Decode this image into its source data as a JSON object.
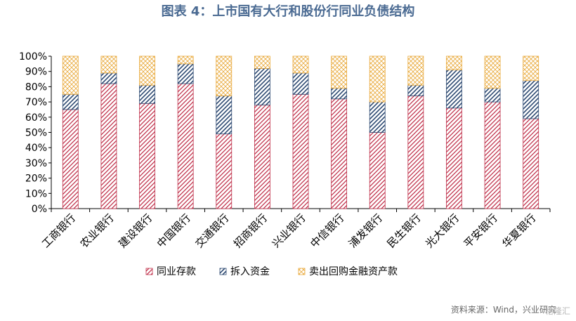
{
  "chart_data": {
    "type": "bar",
    "stacked": true,
    "title": "图表 4：上市国有大行和股份行同业负债结构",
    "categories": [
      "工商银行",
      "农业银行",
      "建设银行",
      "中国银行",
      "交通银行",
      "招商银行",
      "兴业银行",
      "中信银行",
      "浦发银行",
      "民生银行",
      "光大银行",
      "平安银行",
      "华夏银行"
    ],
    "series": [
      {
        "name": "同业存款",
        "color": "#c0304a",
        "pattern": "diag-red",
        "values": [
          65,
          82,
          69,
          82,
          49,
          68,
          75,
          72,
          50,
          74,
          66,
          70,
          59
        ]
      },
      {
        "name": "拆入资金",
        "color": "#2e4a72",
        "pattern": "diag-blue",
        "values": [
          10,
          7,
          12,
          13,
          25,
          24,
          14,
          7,
          20,
          7,
          25,
          9,
          25
        ]
      },
      {
        "name": "卖出回购金融资产款",
        "color": "#e9a93a",
        "pattern": "cross-orange",
        "values": [
          25,
          11,
          19,
          5,
          26,
          8,
          11,
          21,
          30,
          19,
          9,
          21,
          16
        ]
      }
    ],
    "ylim": [
      0,
      100
    ],
    "yticks": [
      "0%",
      "10%",
      "20%",
      "30%",
      "40%",
      "50%",
      "60%",
      "70%",
      "80%",
      "90%",
      "100%"
    ],
    "grid": false,
    "legend_position": "bottom"
  },
  "source": "资料来源：Wind，兴业研究",
  "watermark": "格隆汇"
}
